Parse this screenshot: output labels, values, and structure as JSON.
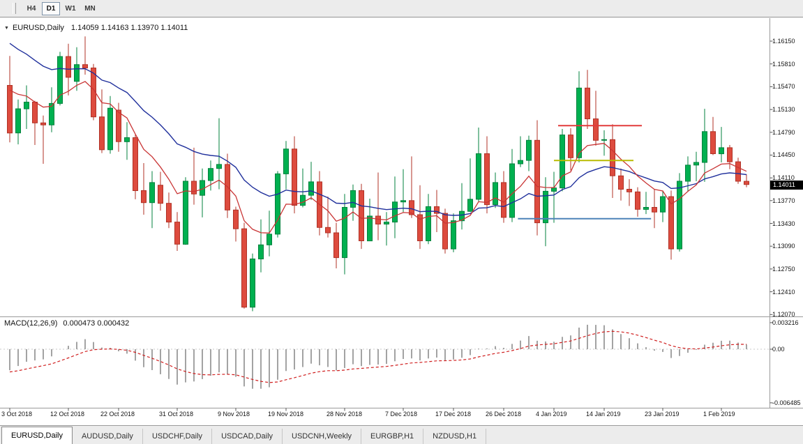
{
  "toolbar": {
    "timeframes": [
      {
        "label": "H4",
        "active": false
      },
      {
        "label": "D1",
        "active": true
      },
      {
        "label": "W1",
        "active": false
      },
      {
        "label": "MN",
        "active": false
      }
    ]
  },
  "window": {
    "symbol_title": "EURUSD,Daily",
    "ohlc_text": "1.14059 1.14163 1.13970 1.14011",
    "price_badge": "1.14011"
  },
  "chart_data": {
    "type": "candlestick",
    "symbol": "EURUSD",
    "timeframe": "Daily",
    "current_ohlc": {
      "open": "1.14059",
      "high": "1.14163",
      "low": "1.13970",
      "close": "1.14011"
    },
    "price_axis_ticks": [
      "1.16150",
      "1.15810",
      "1.15470",
      "1.15130",
      "1.14790",
      "1.14450",
      "1.14110",
      "1.13770",
      "1.13430",
      "1.13090",
      "1.12750",
      "1.12410",
      "1.12070"
    ],
    "date_axis_ticks": [
      {
        "label": "3 Oct 2018",
        "i": 0
      },
      {
        "label": "12 Oct 2018",
        "i": 7
      },
      {
        "label": "22 Oct 2018",
        "i": 13
      },
      {
        "label": "31 Oct 2018",
        "i": 20
      },
      {
        "label": "9 Nov 2018",
        "i": 27
      },
      {
        "label": "19 Nov 2018",
        "i": 33
      },
      {
        "label": "28 Nov 2018",
        "i": 40
      },
      {
        "label": "7 Dec 2018",
        "i": 47
      },
      {
        "label": "17 Dec 2018",
        "i": 53
      },
      {
        "label": "26 Dec 2018",
        "i": 59
      },
      {
        "label": "4 Jan 2019",
        "i": 65
      },
      {
        "label": "14 Jan 2019",
        "i": 71
      },
      {
        "label": "23 Jan 2019",
        "i": 78
      },
      {
        "label": "1 Feb 2019",
        "i": 85
      }
    ],
    "candles": [
      [
        1.1549,
        1.1593,
        1.1464,
        1.1478
      ],
      [
        1.1478,
        1.1528,
        1.1461,
        1.1514
      ],
      [
        1.1514,
        1.1549,
        1.1484,
        1.1524
      ],
      [
        1.1524,
        1.1526,
        1.146,
        1.1493
      ],
      [
        1.1493,
        1.1504,
        1.1432,
        1.149
      ],
      [
        1.149,
        1.1546,
        1.1479,
        1.1522
      ],
      [
        1.1522,
        1.1599,
        1.1519,
        1.1592
      ],
      [
        1.1592,
        1.1611,
        1.1534,
        1.1561
      ],
      [
        1.1555,
        1.1606,
        1.1541,
        1.158
      ],
      [
        1.158,
        1.1622,
        1.1565,
        1.1575
      ],
      [
        1.1575,
        1.1581,
        1.1497,
        1.1502
      ],
      [
        1.1502,
        1.1543,
        1.1448,
        1.1453
      ],
      [
        1.1453,
        1.1533,
        1.1447,
        1.1515
      ],
      [
        1.1512,
        1.1523,
        1.145,
        1.1465
      ],
      [
        1.1465,
        1.1494,
        1.1438,
        1.1471
      ],
      [
        1.1471,
        1.1476,
        1.1379,
        1.1392
      ],
      [
        1.1392,
        1.1433,
        1.1356,
        1.1374
      ],
      [
        1.1374,
        1.1421,
        1.1336,
        1.1404
      ],
      [
        1.14,
        1.142,
        1.1362,
        1.1373
      ],
      [
        1.1373,
        1.1389,
        1.1336,
        1.1345
      ],
      [
        1.1345,
        1.136,
        1.1302,
        1.1312
      ],
      [
        1.1312,
        1.1412,
        1.1311,
        1.1406
      ],
      [
        1.1406,
        1.1456,
        1.1371,
        1.1387
      ],
      [
        1.1385,
        1.1425,
        1.1352,
        1.1407
      ],
      [
        1.1407,
        1.1437,
        1.1392,
        1.1425
      ],
      [
        1.1425,
        1.15,
        1.1394,
        1.1431
      ],
      [
        1.1431,
        1.1447,
        1.1351,
        1.1363
      ],
      [
        1.1363,
        1.1368,
        1.1316,
        1.1335
      ],
      [
        1.1335,
        1.1344,
        1.1216,
        1.1218
      ],
      [
        1.1218,
        1.1298,
        1.1212,
        1.129
      ],
      [
        1.129,
        1.1349,
        1.127,
        1.1311
      ],
      [
        1.1311,
        1.1362,
        1.1294,
        1.1327
      ],
      [
        1.1327,
        1.1421,
        1.1322,
        1.1417
      ],
      [
        1.1417,
        1.1466,
        1.1394,
        1.1454
      ],
      [
        1.1454,
        1.1473,
        1.1358,
        1.137
      ],
      [
        1.137,
        1.1425,
        1.1367,
        1.1385
      ],
      [
        1.1385,
        1.1435,
        1.1378,
        1.1405
      ],
      [
        1.1405,
        1.1421,
        1.1325,
        1.1337
      ],
      [
        1.1337,
        1.1383,
        1.1322,
        1.1329
      ],
      [
        1.1329,
        1.1344,
        1.1276,
        1.1292
      ],
      [
        1.1292,
        1.1387,
        1.1267,
        1.1367
      ],
      [
        1.1367,
        1.1401,
        1.1347,
        1.1392
      ],
      [
        1.1392,
        1.1402,
        1.1305,
        1.1317
      ],
      [
        1.1317,
        1.138,
        1.1317,
        1.1354
      ],
      [
        1.1354,
        1.1419,
        1.1318,
        1.1342
      ],
      [
        1.1342,
        1.136,
        1.131,
        1.1345
      ],
      [
        1.1345,
        1.1413,
        1.1321,
        1.1375
      ],
      [
        1.1375,
        1.1424,
        1.136,
        1.1377
      ],
      [
        1.1377,
        1.1443,
        1.1351,
        1.1356
      ],
      [
        1.1356,
        1.14,
        1.1305,
        1.1317
      ],
      [
        1.1317,
        1.1387,
        1.1312,
        1.1368
      ],
      [
        1.1368,
        1.1393,
        1.133,
        1.1358
      ],
      [
        1.1358,
        1.1365,
        1.1298,
        1.1305
      ],
      [
        1.1305,
        1.1358,
        1.13,
        1.1347
      ],
      [
        1.1347,
        1.1403,
        1.1334,
        1.1361
      ],
      [
        1.1361,
        1.144,
        1.136,
        1.1379
      ],
      [
        1.1379,
        1.1486,
        1.1375,
        1.1447
      ],
      [
        1.1447,
        1.1473,
        1.1358,
        1.1371
      ],
      [
        1.1371,
        1.1419,
        1.1366,
        1.1404
      ],
      [
        1.1404,
        1.1421,
        1.1344,
        1.1352
      ],
      [
        1.1352,
        1.1454,
        1.1345,
        1.1432
      ],
      [
        1.1432,
        1.1473,
        1.1427,
        1.1437
      ],
      [
        1.1437,
        1.1474,
        1.1421,
        1.1467
      ],
      [
        1.1467,
        1.1497,
        1.1325,
        1.1344
      ],
      [
        1.1344,
        1.1412,
        1.1309,
        1.1391
      ],
      [
        1.1391,
        1.142,
        1.1344,
        1.1396
      ],
      [
        1.1396,
        1.1484,
        1.1391,
        1.1475
      ],
      [
        1.1475,
        1.1485,
        1.1422,
        1.1441
      ],
      [
        1.1441,
        1.157,
        1.1434,
        1.1545
      ],
      [
        1.1545,
        1.1572,
        1.1484,
        1.1499
      ],
      [
        1.1499,
        1.1541,
        1.1459,
        1.1467
      ],
      [
        1.1467,
        1.1482,
        1.1444,
        1.1468
      ],
      [
        1.1468,
        1.1491,
        1.1381,
        1.1414
      ],
      [
        1.1414,
        1.1425,
        1.1377,
        1.1394
      ],
      [
        1.1394,
        1.1409,
        1.1369,
        1.139
      ],
      [
        1.139,
        1.1397,
        1.1353,
        1.1364
      ],
      [
        1.1364,
        1.139,
        1.1357,
        1.1367
      ],
      [
        1.1367,
        1.1394,
        1.1336,
        1.136
      ],
      [
        1.136,
        1.1392,
        1.1345,
        1.1383
      ],
      [
        1.1383,
        1.1392,
        1.1289,
        1.1305
      ],
      [
        1.1305,
        1.1418,
        1.1301,
        1.1406
      ],
      [
        1.1406,
        1.1443,
        1.139,
        1.143
      ],
      [
        1.143,
        1.145,
        1.1406,
        1.1434
      ],
      [
        1.1434,
        1.1514,
        1.1405,
        1.148
      ],
      [
        1.148,
        1.1502,
        1.1445,
        1.1447
      ],
      [
        1.1447,
        1.1487,
        1.1434,
        1.1456
      ],
      [
        1.1456,
        1.146,
        1.1424,
        1.1435
      ],
      [
        1.1435,
        1.1441,
        1.1402,
        1.1406
      ],
      [
        1.14059,
        1.14163,
        1.1397,
        1.14011
      ]
    ],
    "moving_averages": [
      {
        "name": "fast",
        "period": 8,
        "color": "#C93535"
      },
      {
        "name": "slow",
        "period": 21,
        "color": "#20309C"
      }
    ],
    "hlines": [
      {
        "name": "resistance-line",
        "price": 1.1489,
        "i1": 65.5,
        "i2": 75.5,
        "color": "#E23B3B"
      },
      {
        "name": "mid-line",
        "price": 1.1437,
        "i1": 65.0,
        "i2": 74.5,
        "color": "#B9BB00"
      },
      {
        "name": "support-line",
        "price": 1.135,
        "i1": 60.7,
        "i2": 76.6,
        "color": "#4C82B8"
      }
    ],
    "macd": {
      "title": "MACD(12,26,9)",
      "values_text": "0.000473 0.000432",
      "macd_value": 0.000473,
      "signal_value": 0.000432,
      "params": [
        12,
        26,
        9
      ],
      "axis_ticks": [
        "0.003216",
        "0.00",
        "-0.006485"
      ],
      "histogram_color": "#A3A3A3",
      "signal_color": "#D01F1F"
    },
    "colors": {
      "up": "#00B050",
      "up_border": "#00813C",
      "down": "#DD4B3E",
      "down_border": "#B03226"
    }
  },
  "tabs": [
    {
      "label": "EURUSD,Daily",
      "active": true
    },
    {
      "label": "AUDUSD,Daily",
      "active": false
    },
    {
      "label": "USDCHF,Daily",
      "active": false
    },
    {
      "label": "USDCAD,Daily",
      "active": false
    },
    {
      "label": "USDCNH,Weekly",
      "active": false
    },
    {
      "label": "EURGBP,H1",
      "active": false
    },
    {
      "label": "NZDUSD,H1",
      "active": false
    }
  ]
}
